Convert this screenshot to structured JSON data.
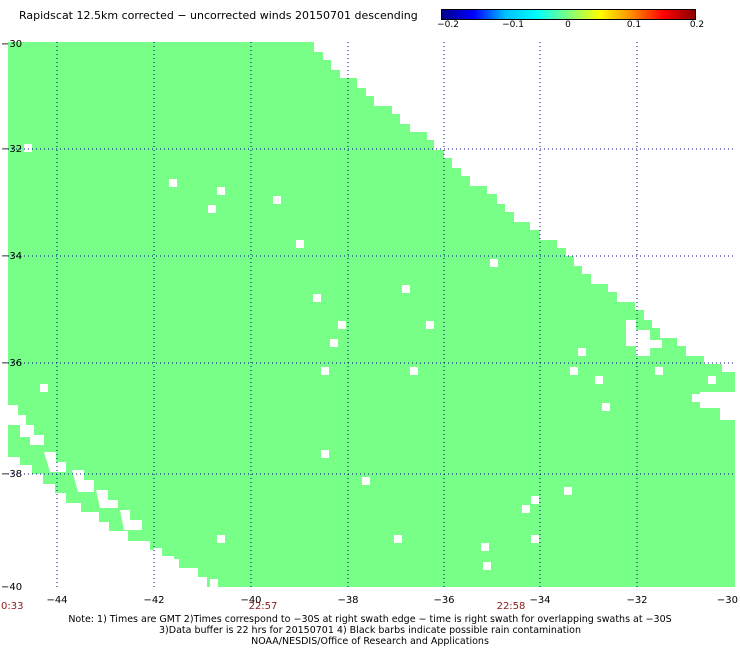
{
  "title": "Rapidscat 12.5km corrected − uncorrected winds 20150701 descending",
  "colorbar": {
    "colors": [
      "#00008b",
      "#0000ff",
      "#00bfff",
      "#00ffff",
      "#7fff7f",
      "#ffff00",
      "#ff8c00",
      "#ff0000",
      "#8b0000"
    ],
    "ticks": [
      "−0.2",
      "−0.1",
      "0",
      "0.1",
      "0.2"
    ]
  },
  "map": {
    "lat_range": [
      -40,
      -30
    ],
    "lon_range": [
      -45,
      -30
    ],
    "fill_color": "#77ff88",
    "grid_lats": [
      -32,
      -34,
      -36,
      -38
    ],
    "grid_lons": [
      -44,
      -42,
      -40,
      -38,
      -36,
      -34,
      -32
    ],
    "lat_labels": [
      "−30",
      "−32",
      "−34",
      "−36",
      "−38",
      "−40"
    ],
    "lon_labels": [
      "−44",
      "−42",
      "−40",
      "−38",
      "−36",
      "−34",
      "−32",
      "−30"
    ],
    "time_labels": [
      "0:33",
      "22:57",
      "22:58"
    ]
  },
  "notes": [
    "Note: 1) Times are GMT 2)Times correspond to −30S at right swath edge − time is right swath for overlapping swaths at −30S",
    "3)Data buffer is 22 hrs for 20150701 4) Black barbs indicate possible rain contamination",
    "NOAA/NESDIS/Office of Research and Applications"
  ]
}
